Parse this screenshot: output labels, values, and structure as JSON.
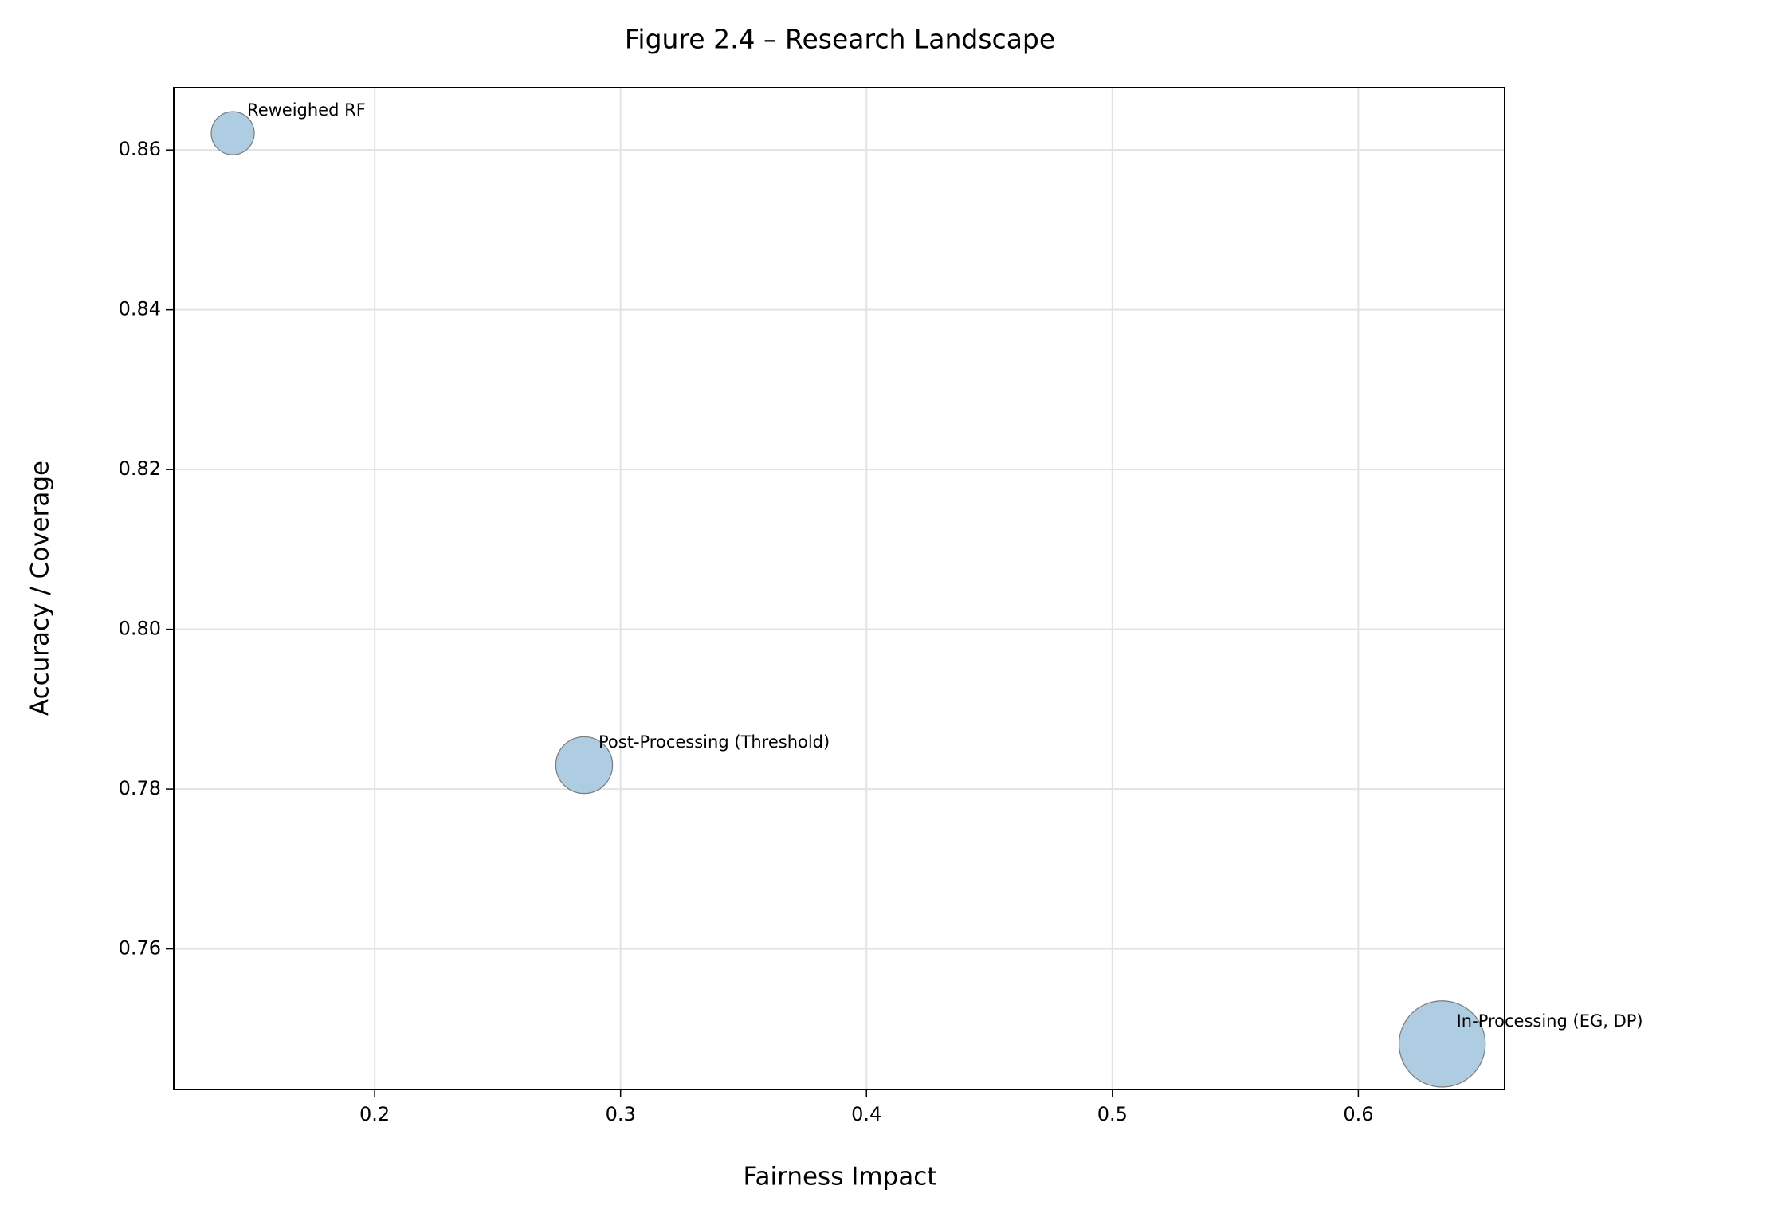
{
  "chart_data": {
    "type": "scatter",
    "title": "Figure 2.4 – Research Landscape",
    "x_label": "Fairness Impact",
    "y_label": "Accuracy / Coverage",
    "labels": [
      "Reweighed RF",
      "Post-Processing (Threshold)",
      "In-Processing (EG, DP)"
    ],
    "x": [
      0.1423,
      0.2852,
      0.6341
    ],
    "values": [
      0.8621,
      0.783,
      0.7481
    ],
    "sizes": [
      360,
      625,
      1444
    ],
    "color": "#aecde3",
    "xlim": [
      0.1183,
      0.6595
    ],
    "ylim": [
      0.7424,
      0.8678
    ],
    "xticks": [
      0.2,
      0.3,
      0.4,
      0.5,
      0.6
    ],
    "yticks": [
      {
        "value": 0.76,
        "label": "0.76"
      },
      {
        "value": 0.78,
        "label": "0.78"
      },
      {
        "value": 0.8,
        "label": "0.80"
      },
      {
        "value": 0.82,
        "label": "0.82"
      },
      {
        "value": 0.84,
        "label": "0.84"
      },
      {
        "value": 0.86,
        "label": "0.86"
      }
    ],
    "grid": true
  }
}
